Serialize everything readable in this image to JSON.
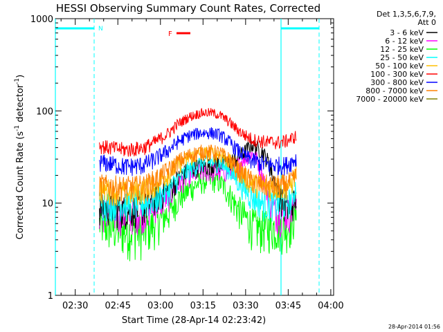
{
  "chart_data": {
    "type": "line",
    "title": "HESSI Observing Summary Count Rates, Corrected",
    "xlabel": "Start Time (28-Apr-14 02:23:42)",
    "ylabel_main": "Corrected Count Rate (s",
    "ylabel_sup1": "-1",
    "ylabel_mid": " detector",
    "ylabel_sup2": "-1",
    "ylabel_end": ")",
    "yscale": "log",
    "ylim": [
      1,
      1000
    ],
    "xlim_minutes": [
      -7,
      91
    ],
    "xticks": [
      {
        "t": 0,
        "label": "02:30"
      },
      {
        "t": 15,
        "label": "02:45"
      },
      {
        "t": 30,
        "label": "03:00"
      },
      {
        "t": 45,
        "label": "03:15"
      },
      {
        "t": 60,
        "label": "03:30"
      },
      {
        "t": 75,
        "label": "03:45"
      },
      {
        "t": 90,
        "label": "04:00"
      }
    ],
    "yticks": [
      {
        "v": 1,
        "label": "1"
      },
      {
        "v": 10,
        "label": "10"
      },
      {
        "v": 100,
        "label": "100"
      },
      {
        "v": 1000,
        "label": "1000"
      }
    ],
    "legend_header": [
      "Det 1,3,5,6,7,9,",
      "Att 0"
    ],
    "legend_position": "right",
    "series": [
      {
        "name": "3 - 6 keV",
        "color": "#000000",
        "t": [
          8.5,
          12,
          18,
          24,
          28,
          33,
          36,
          40,
          44,
          48,
          51,
          54,
          57,
          60,
          62,
          64,
          66,
          68,
          70,
          72,
          74,
          76,
          78
        ],
        "values": [
          9,
          9,
          8.5,
          9,
          11,
          14,
          18,
          23,
          25,
          26,
          27,
          27,
          31,
          37,
          43,
          40,
          36,
          28,
          18,
          12,
          9,
          9,
          12
        ]
      },
      {
        "name": "6 - 12 keV",
        "color": "#ff00ff",
        "t": [
          8.5,
          12,
          18,
          24,
          28,
          33,
          36,
          40,
          44,
          48,
          51,
          54,
          57,
          60,
          62,
          64,
          66,
          68,
          70,
          72,
          74,
          76,
          78
        ],
        "values": [
          8,
          8,
          7.5,
          8,
          9.5,
          12,
          16,
          20,
          22,
          22,
          22,
          22,
          26,
          31,
          35,
          30,
          20,
          12,
          8.5,
          7.5,
          8,
          8,
          12
        ]
      },
      {
        "name": "12 - 25 keV",
        "color": "#00ff00",
        "t": [
          8.5,
          12,
          18,
          24,
          28,
          33,
          36,
          40,
          44,
          48,
          51,
          54,
          57,
          60,
          62,
          64,
          66,
          68,
          70,
          72,
          74,
          76,
          78
        ],
        "values": [
          6,
          5.5,
          5,
          5,
          6,
          8,
          11,
          14,
          17,
          18,
          17,
          13,
          9,
          7,
          6,
          5.5,
          5.5,
          5.5,
          5.5,
          5.5,
          5.5,
          6,
          8
        ]
      },
      {
        "name": "25 - 50 keV",
        "color": "#00ffff",
        "t": [
          8.5,
          12,
          18,
          24,
          28,
          33,
          36,
          40,
          44,
          48,
          51,
          54,
          57,
          60,
          62,
          64,
          66,
          68,
          70,
          72,
          74,
          76,
          78
        ],
        "values": [
          10,
          10,
          10,
          10,
          11,
          14,
          18,
          23,
          27,
          28,
          27,
          23,
          18,
          14,
          12,
          11,
          10,
          10,
          10,
          10,
          10,
          11,
          16
        ]
      },
      {
        "name": "50 - 100 keV",
        "color": "#ffbf00",
        "t": [
          8.5,
          12,
          18,
          24,
          28,
          33,
          36,
          40,
          44,
          48,
          51,
          54,
          57,
          60,
          62,
          64,
          66,
          68,
          70,
          72,
          74,
          76,
          78
        ],
        "values": [
          14,
          14,
          13,
          14,
          16,
          21,
          26,
          31,
          34,
          35,
          34,
          29,
          23,
          19,
          17,
          16,
          15,
          15,
          15,
          15,
          15,
          16,
          22
        ]
      },
      {
        "name": "100 - 300 keV",
        "color": "#ff0000",
        "t": [
          8.5,
          12,
          18,
          24,
          28,
          33,
          36,
          40,
          44,
          48,
          51,
          54,
          57,
          60,
          62,
          64,
          66,
          68,
          70,
          72,
          74,
          76,
          78
        ],
        "values": [
          42,
          40,
          38,
          40,
          46,
          58,
          72,
          86,
          95,
          96,
          90,
          77,
          63,
          54,
          50,
          48,
          47,
          46,
          46,
          46,
          47,
          50,
          54
        ]
      },
      {
        "name": "300 - 800 keV",
        "color": "#0000ff",
        "t": [
          8.5,
          12,
          18,
          24,
          28,
          33,
          36,
          40,
          44,
          48,
          51,
          54,
          57,
          60,
          62,
          64,
          66,
          68,
          70,
          72,
          74,
          76,
          78
        ],
        "values": [
          28,
          27,
          25,
          26,
          30,
          38,
          46,
          54,
          58,
          58,
          55,
          47,
          38,
          32,
          29,
          28,
          27,
          26,
          26,
          26,
          26,
          28,
          31
        ]
      },
      {
        "name": "800 - 7000 keV",
        "color": "#ff8000",
        "t": [
          8.5,
          12,
          18,
          24,
          28,
          33,
          36,
          40,
          44,
          48,
          51,
          54,
          57,
          60,
          62,
          64,
          66,
          68,
          70,
          72,
          74,
          76,
          78
        ],
        "values": [
          16,
          15.5,
          15,
          15.5,
          18,
          23,
          28,
          33,
          36,
          36,
          35,
          30,
          24,
          20,
          17.5,
          16.5,
          16,
          15.5,
          15.5,
          15.5,
          16,
          17,
          20
        ]
      },
      {
        "name": "7000 - 20000 keV",
        "color": "#808000",
        "t": [],
        "values": []
      }
    ],
    "annotations": [
      {
        "label": "N",
        "color": "#00ffff",
        "t": 7
      },
      {
        "label": "F",
        "color": "#ff0000",
        "t": 40
      }
    ]
  },
  "footer": {
    "timestamp": "28-Apr-2014 01:56"
  }
}
